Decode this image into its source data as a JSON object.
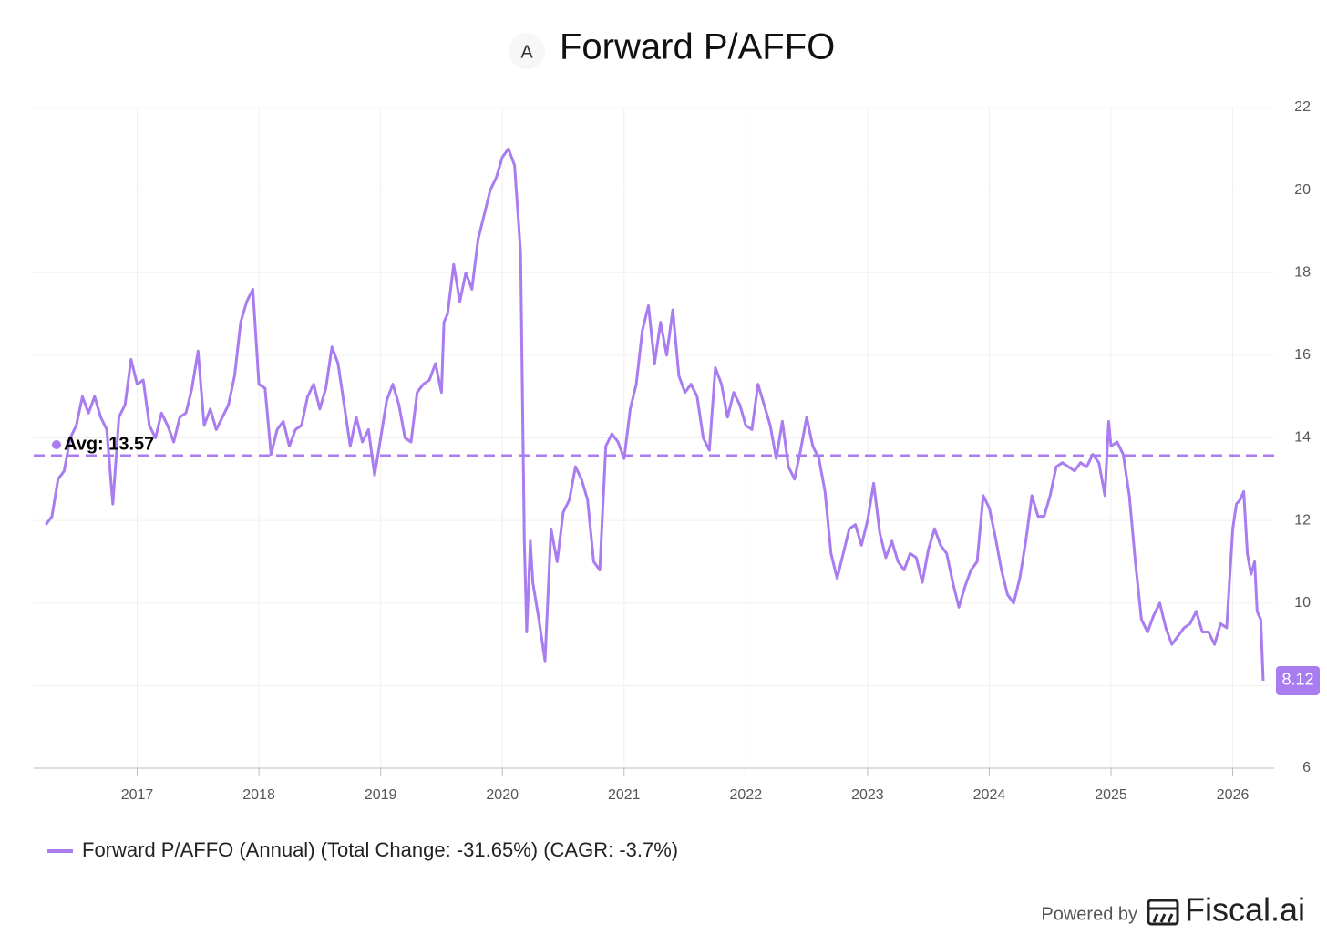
{
  "chart_data": {
    "type": "line",
    "icon": "A",
    "title": "Forward P/AFFO",
    "x": [
      2016.25,
      2016.3,
      2016.35,
      2016.4,
      2016.45,
      2016.5,
      2016.55,
      2016.6,
      2016.65,
      2016.7,
      2016.75,
      2016.8,
      2016.85,
      2016.9,
      2016.95,
      2017.0,
      2017.05,
      2017.1,
      2017.15,
      2017.2,
      2017.25,
      2017.3,
      2017.35,
      2017.4,
      2017.45,
      2017.5,
      2017.55,
      2017.6,
      2017.65,
      2017.7,
      2017.75,
      2017.8,
      2017.85,
      2017.9,
      2017.95,
      2018.0,
      2018.05,
      2018.1,
      2018.15,
      2018.2,
      2018.25,
      2018.3,
      2018.35,
      2018.4,
      2018.45,
      2018.5,
      2018.55,
      2018.6,
      2018.65,
      2018.7,
      2018.75,
      2018.8,
      2018.85,
      2018.9,
      2018.95,
      2019.0,
      2019.05,
      2019.1,
      2019.15,
      2019.2,
      2019.25,
      2019.3,
      2019.35,
      2019.4,
      2019.45,
      2019.5,
      2019.52,
      2019.55,
      2019.6,
      2019.65,
      2019.7,
      2019.75,
      2019.8,
      2019.85,
      2019.9,
      2019.95,
      2020.0,
      2020.05,
      2020.1,
      2020.15,
      2020.18,
      2020.2,
      2020.23,
      2020.25,
      2020.3,
      2020.35,
      2020.4,
      2020.45,
      2020.5,
      2020.55,
      2020.6,
      2020.65,
      2020.7,
      2020.75,
      2020.8,
      2020.85,
      2020.9,
      2020.95,
      2021.0,
      2021.05,
      2021.1,
      2021.15,
      2021.2,
      2021.25,
      2021.3,
      2021.35,
      2021.4,
      2021.45,
      2021.5,
      2021.55,
      2021.6,
      2021.65,
      2021.7,
      2021.75,
      2021.8,
      2021.85,
      2021.9,
      2021.95,
      2022.0,
      2022.05,
      2022.1,
      2022.15,
      2022.2,
      2022.25,
      2022.3,
      2022.35,
      2022.4,
      2022.45,
      2022.5,
      2022.55,
      2022.6,
      2022.65,
      2022.7,
      2022.75,
      2022.8,
      2022.85,
      2022.9,
      2022.95,
      2023.0,
      2023.05,
      2023.1,
      2023.15,
      2023.2,
      2023.25,
      2023.3,
      2023.35,
      2023.4,
      2023.45,
      2023.5,
      2023.55,
      2023.6,
      2023.65,
      2023.7,
      2023.75,
      2023.8,
      2023.85,
      2023.9,
      2023.95,
      2024.0,
      2024.05,
      2024.1,
      2024.15,
      2024.2,
      2024.25,
      2024.3,
      2024.35,
      2024.4,
      2024.45,
      2024.5,
      2024.55,
      2024.6,
      2024.65,
      2024.7,
      2024.75,
      2024.8,
      2024.85,
      2024.9,
      2024.95,
      2024.98,
      2025.0,
      2025.05,
      2025.1,
      2025.15,
      2025.2,
      2025.25,
      2025.3,
      2025.35,
      2025.4,
      2025.45,
      2025.5,
      2025.55,
      2025.6,
      2025.65,
      2025.7,
      2025.75,
      2025.8,
      2025.85,
      2025.9,
      2025.95,
      2026.0,
      2026.03,
      2026.06,
      2026.09,
      2026.12,
      2026.15,
      2026.18,
      2026.2,
      2026.23,
      2026.25
    ],
    "series": [
      {
        "name": "Forward P/AFFO (Annual) (Total Change: -31.65%) (CAGR: -3.7%)",
        "color": "#a97cf0",
        "values": [
          11.9,
          12.1,
          13.0,
          13.2,
          14.0,
          14.3,
          15.0,
          14.6,
          15.0,
          14.5,
          14.2,
          12.4,
          14.5,
          14.8,
          15.9,
          15.3,
          15.4,
          14.3,
          14.0,
          14.6,
          14.3,
          13.9,
          14.5,
          14.6,
          15.2,
          16.1,
          14.3,
          14.7,
          14.2,
          14.5,
          14.8,
          15.5,
          16.8,
          17.3,
          17.6,
          15.3,
          15.2,
          13.6,
          14.2,
          14.4,
          13.8,
          14.2,
          14.3,
          15.0,
          15.3,
          14.7,
          15.2,
          16.2,
          15.8,
          14.8,
          13.8,
          14.5,
          13.9,
          14.2,
          13.1,
          14.0,
          14.9,
          15.3,
          14.8,
          14.0,
          13.9,
          15.1,
          15.3,
          15.4,
          15.8,
          15.1,
          16.8,
          17.0,
          18.2,
          17.3,
          18.0,
          17.6,
          18.8,
          19.4,
          20.0,
          20.3,
          20.8,
          21.0,
          20.6,
          18.5,
          11.5,
          9.3,
          11.5,
          10.5,
          9.6,
          8.6,
          11.8,
          11.0,
          12.2,
          12.5,
          13.3,
          13.0,
          12.5,
          11.0,
          10.8,
          13.8,
          14.1,
          13.9,
          13.5,
          14.7,
          15.3,
          16.6,
          17.2,
          15.8,
          16.8,
          16.0,
          17.1,
          15.5,
          15.1,
          15.3,
          15.0,
          14.0,
          13.7,
          15.7,
          15.3,
          14.5,
          15.1,
          14.8,
          14.3,
          14.2,
          15.3,
          14.8,
          14.3,
          13.5,
          14.4,
          13.3,
          13.0,
          13.7,
          14.5,
          13.8,
          13.5,
          12.7,
          11.2,
          10.6,
          11.2,
          11.8,
          11.9,
          11.4,
          12.0,
          12.9,
          11.7,
          11.1,
          11.5,
          11.0,
          10.8,
          11.2,
          11.1,
          10.5,
          11.3,
          11.8,
          11.4,
          11.2,
          10.5,
          9.9,
          10.4,
          10.8,
          11.0,
          12.6,
          12.3,
          11.6,
          10.8,
          10.2,
          10.0,
          10.6,
          11.5,
          12.6,
          12.1,
          12.1,
          12.6,
          13.3,
          13.4,
          13.3,
          13.2,
          13.4,
          13.3,
          13.6,
          13.4,
          12.6,
          14.4,
          13.8,
          13.9,
          13.6,
          12.6,
          11.0,
          9.6,
          9.3,
          9.7,
          10.0,
          9.4,
          9.0,
          9.2,
          9.4,
          9.5,
          9.8,
          9.3,
          9.3,
          9.0,
          9.5,
          9.4,
          11.8,
          12.4,
          12.5,
          12.7,
          11.2,
          10.7,
          11.0,
          9.8,
          9.6,
          8.12
        ]
      }
    ],
    "average_line": {
      "value": 13.57,
      "label": "Avg: 13.57"
    },
    "xlim": [
      2016.15,
      2026.34
    ],
    "xticks": [
      2017,
      2018,
      2019,
      2020,
      2021,
      2022,
      2023,
      2024,
      2025,
      2026
    ],
    "ylim": [
      6,
      22
    ],
    "yticks": [
      6,
      8,
      10,
      12,
      14,
      16,
      18,
      20,
      22
    ],
    "grid": true,
    "footer": {
      "powered_by": "Powered by",
      "brand": "Fiscal.ai"
    }
  }
}
